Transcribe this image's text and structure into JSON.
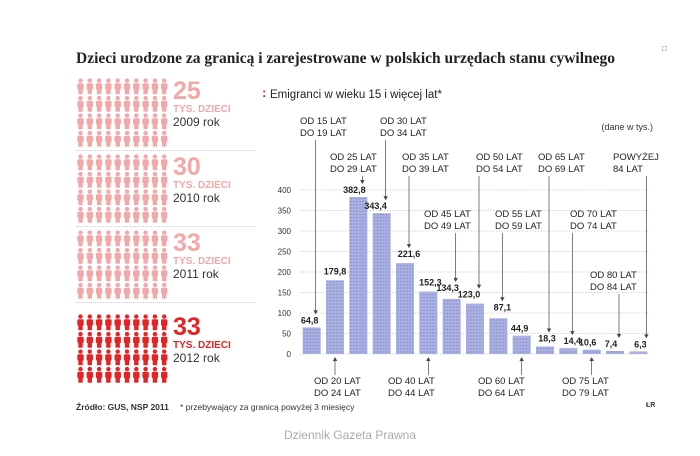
{
  "title": "Dzieci urodzone za granicą i zarejestrowane w polskich urzędach stanu cywilnego",
  "marker": "□",
  "panels": [
    {
      "value": "25",
      "unit": "TYS. DZIECI",
      "year": "2009 rok",
      "filled": 0.25
    },
    {
      "value": "30",
      "unit": "TYS. DZIECI",
      "year": "2010 rok",
      "filled": 0.3
    },
    {
      "value": "33",
      "unit": "TYS. DZIECI",
      "year": "2011 rok",
      "filled": 0.33
    },
    {
      "value": "33",
      "unit": "TYS. DZIECI",
      "year": "2012 rok",
      "filled": 0.33
    }
  ],
  "colors": {
    "pale_red": "#f2a8a8",
    "bright_red": "#e52325",
    "bar": "#aab0e0",
    "bar_dark": "#7d86cf",
    "accent": "#e52325"
  },
  "chart_data": {
    "type": "bar",
    "title": "Emigranci w wieku 15 i więcej lat*",
    "unit_note": "(dane w tys.)",
    "categories": [
      "OD 15 LAT DO 19 LAT",
      "OD 20 LAT DO 24 LAT",
      "OD 25 LAT DO 29 LAT",
      "OD 30 LAT DO 34 LAT",
      "OD 35 LAT DO 39 LAT",
      "OD 40 LAT DO 44 LAT",
      "OD 45 LAT DO 49 LAT",
      "OD 50 LAT DO 54 LAT",
      "OD 55 LAT DO 59 LAT",
      "OD 60 LAT DO 64 LAT",
      "OD 65 LAT DO 69 LAT",
      "OD 70 LAT DO 74 LAT",
      "OD 75 LAT DO 79 LAT",
      "OD 80 LAT DO 84 LAT",
      "POWYŻEJ 84 LAT"
    ],
    "values": [
      64.8,
      179.8,
      382.8,
      343.4,
      221.6,
      152.3,
      134.3,
      123.0,
      87.1,
      44.9,
      18.3,
      14.4,
      10.6,
      7.4,
      6.3
    ],
    "value_labels": [
      "64,8",
      "179,8",
      "382,8",
      "343,4",
      "221,6",
      "152,3",
      "134,3",
      "123,0",
      "87,1",
      "44,9",
      "18,3",
      "14,4",
      "10,6",
      "7,4",
      "6,3"
    ],
    "label_lines": [
      [
        "OD 15 LAT",
        "DO 19 LAT"
      ],
      [
        "OD 20 LAT",
        "DO 24 LAT"
      ],
      [
        "OD 25 LAT",
        "DO 29 LAT"
      ],
      [
        "OD 30 LAT",
        "DO 34 LAT"
      ],
      [
        "OD 35 LAT",
        "DO 39 LAT"
      ],
      [
        "OD 40 LAT",
        "DO 44 LAT"
      ],
      [
        "OD 45 LAT",
        "DO 49 LAT"
      ],
      [
        "OD 50 LAT",
        "DO 54 LAT"
      ],
      [
        "OD 55 LAT",
        "DO 59 LAT"
      ],
      [
        "OD 60 LAT",
        "DO 64 LAT"
      ],
      [
        "OD 65 LAT",
        "DO 69 LAT"
      ],
      [
        "OD 70 LAT",
        "DO 74 LAT"
      ],
      [
        "OD 75 LAT",
        "DO 79 LAT"
      ],
      [
        "OD 80 LAT",
        "DO 84 LAT"
      ],
      [
        "POWYŻEJ",
        "84 LAT"
      ]
    ],
    "yticks": [
      0,
      50,
      100,
      150,
      200,
      250,
      300,
      350,
      400
    ],
    "ylim": [
      0,
      400
    ],
    "grid": true
  },
  "footer": {
    "source": "Źródło: GUS, NSP 2011",
    "note": "* przebywający za granicą powyżej 3 miesięcy",
    "signature": "ŁR"
  },
  "publisher": "Dziennik Gazeta Prawna"
}
